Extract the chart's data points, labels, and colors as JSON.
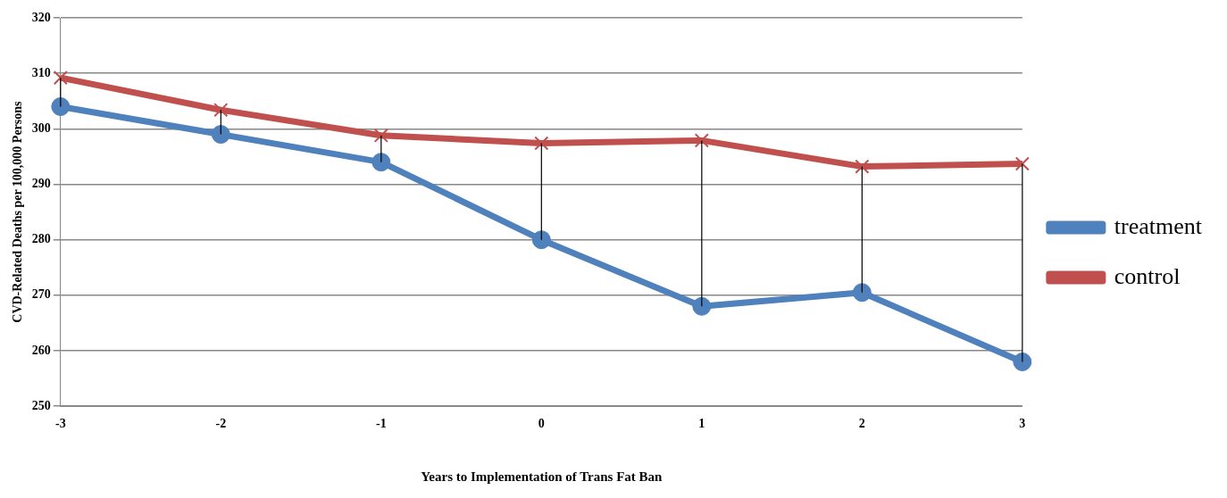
{
  "chart_data": {
    "type": "line",
    "xlabel": "Years to Implementation of Trans Fat Ban",
    "ylabel": "CVD-Related Deaths per 100,000 Persons",
    "categories": [
      "-3",
      "-2",
      "-1",
      "0",
      "1",
      "2",
      "3"
    ],
    "series": [
      {
        "name": "treatment",
        "color": "#4f81bd",
        "marker": "circle",
        "values": [
          304,
          299,
          294,
          280,
          268,
          270.5,
          258
        ],
        "errors": [
          [
            304,
            309.2
          ],
          [
            299,
            303.4
          ],
          [
            294,
            298.8
          ],
          [
            280,
            297.4
          ],
          [
            268,
            297.9
          ],
          [
            270.5,
            293.2
          ],
          [
            258,
            293.7
          ]
        ]
      },
      {
        "name": "control",
        "color": "#c0504d",
        "marker": "cross",
        "values": [
          309.2,
          303.4,
          298.8,
          297.4,
          297.9,
          293.2,
          293.7
        ]
      }
    ],
    "ylim": [
      250,
      320
    ],
    "yticks": [
      250,
      260,
      270,
      280,
      290,
      300,
      310,
      320
    ],
    "grid": "y",
    "legend": "right",
    "line_style": "solid"
  }
}
